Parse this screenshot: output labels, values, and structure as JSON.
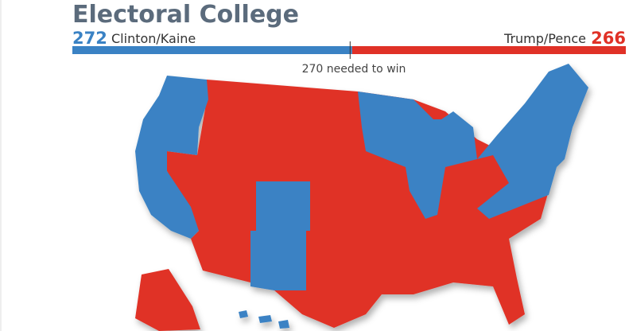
{
  "header": {
    "title": "Electoral College"
  },
  "results": {
    "democrat": {
      "votes": 272,
      "ticket": "Clinton/Kaine",
      "color": "#3a82c4"
    },
    "republican": {
      "votes": 266,
      "ticket": "Trump/Pence",
      "color": "#e03127"
    },
    "threshold": {
      "value": 270,
      "label": "270 needed to win"
    }
  }
}
